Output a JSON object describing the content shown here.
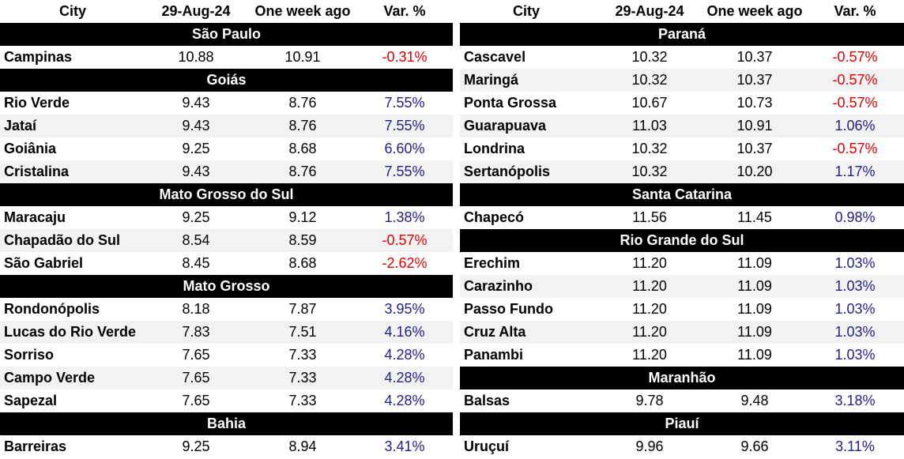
{
  "columns": {
    "city": "City",
    "date": "29-Aug-24",
    "week_ago": "One week ago",
    "var": "Var. %"
  },
  "colors": {
    "header_bg": "#000000",
    "positive": "#1f1f8c",
    "negative": "#e00000"
  },
  "left": [
    {
      "region": "São Paulo",
      "rows": [
        {
          "city": "Campinas",
          "today": "10.88",
          "week": "10.91",
          "var": "-0.31%"
        }
      ]
    },
    {
      "region": "Goiás",
      "rows": [
        {
          "city": "Rio Verde",
          "today": "9.43",
          "week": "8.76",
          "var": "7.55%"
        },
        {
          "city": "Jataí",
          "today": "9.43",
          "week": "8.76",
          "var": "7.55%"
        },
        {
          "city": "Goiânia",
          "today": "9.25",
          "week": "8.68",
          "var": "6.60%"
        },
        {
          "city": "Cristalina",
          "today": "9.43",
          "week": "8.76",
          "var": "7.55%"
        }
      ]
    },
    {
      "region": "Mato Grosso do Sul",
      "rows": [
        {
          "city": "Maracaju",
          "today": "9.25",
          "week": "9.12",
          "var": "1.38%"
        },
        {
          "city": "Chapadão do Sul",
          "today": "8.54",
          "week": "8.59",
          "var": "-0.57%"
        },
        {
          "city": "São Gabriel",
          "today": "8.45",
          "week": "8.68",
          "var": "-2.62%"
        }
      ]
    },
    {
      "region": "Mato Grosso",
      "rows": [
        {
          "city": "Rondonópolis",
          "today": "8.18",
          "week": "7.87",
          "var": "3.95%"
        },
        {
          "city": "Lucas do Rio Verde",
          "today": "7.83",
          "week": "7.51",
          "var": "4.16%"
        },
        {
          "city": "Sorriso",
          "today": "7.65",
          "week": "7.33",
          "var": "4.28%"
        },
        {
          "city": "Campo Verde",
          "today": "7.65",
          "week": "7.33",
          "var": "4.28%"
        },
        {
          "city": "Sapezal",
          "today": "7.65",
          "week": "7.33",
          "var": "4.28%"
        }
      ]
    },
    {
      "region": "Bahia",
      "rows": [
        {
          "city": "Barreiras",
          "today": "9.25",
          "week": "8.94",
          "var": "3.41%"
        }
      ]
    }
  ],
  "right": [
    {
      "region": "Paraná",
      "rows": [
        {
          "city": "Cascavel",
          "today": "10.32",
          "week": "10.37",
          "var": "-0.57%"
        },
        {
          "city": "Maringá",
          "today": "10.32",
          "week": "10.37",
          "var": "-0.57%"
        },
        {
          "city": "Ponta Grossa",
          "today": "10.67",
          "week": "10.73",
          "var": "-0.57%"
        },
        {
          "city": "Guarapuava",
          "today": "11.03",
          "week": "10.91",
          "var": "1.06%"
        },
        {
          "city": "Londrina",
          "today": "10.32",
          "week": "10.37",
          "var": "-0.57%"
        },
        {
          "city": "Sertanópolis",
          "today": "10.32",
          "week": "10.20",
          "var": "1.17%"
        }
      ]
    },
    {
      "region": "Santa Catarina",
      "rows": [
        {
          "city": "Chapecó",
          "today": "11.56",
          "week": "11.45",
          "var": "0.98%"
        }
      ]
    },
    {
      "region": "Rio Grande do Sul",
      "rows": [
        {
          "city": "Erechim",
          "today": "11.20",
          "week": "11.09",
          "var": "1.03%"
        },
        {
          "city": "Carazinho",
          "today": "11.20",
          "week": "11.09",
          "var": "1.03%"
        },
        {
          "city": "Passo Fundo",
          "today": "11.20",
          "week": "11.09",
          "var": "1.03%"
        },
        {
          "city": "Cruz Alta",
          "today": "11.20",
          "week": "11.09",
          "var": "1.03%"
        },
        {
          "city": "Panambi",
          "today": "11.20",
          "week": "11.09",
          "var": "1.03%"
        }
      ]
    },
    {
      "region": "Maranhão",
      "rows": [
        {
          "city": "Balsas",
          "today": "9.78",
          "week": "9.48",
          "var": "3.18%"
        }
      ]
    },
    {
      "region": "Piauí",
      "rows": [
        {
          "city": "Uruçuí",
          "today": "9.96",
          "week": "9.66",
          "var": "3.11%"
        }
      ]
    }
  ]
}
